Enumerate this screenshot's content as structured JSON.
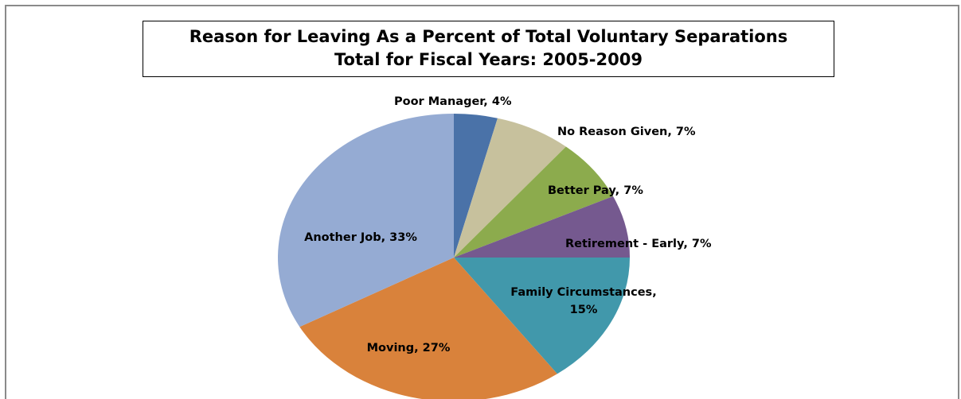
{
  "chart_data": {
    "type": "pie",
    "title": "Reason for Leaving As a Percent of Total Voluntary Separations",
    "subtitle": "Total for Fiscal Years:  2005-2009",
    "start_angle_deg": 0,
    "direction": "clockwise",
    "slices": [
      {
        "label": "Poor Manager, 4%",
        "value": 4,
        "color": "#4a72a8"
      },
      {
        "label": "No Reason Given, 7%",
        "value": 7,
        "color": "#c7c19d"
      },
      {
        "label": "Better Pay, 7%",
        "value": 7,
        "color": "#8cab4d"
      },
      {
        "label": "Retirement - Early, 7%",
        "value": 7,
        "color": "#75598f"
      },
      {
        "label": "Family Circumstances, 15%",
        "label_lines": [
          "Family Circumstances,",
          "15%"
        ],
        "value": 15,
        "color": "#4198ab"
      },
      {
        "label": "Moving, 27%",
        "value": 27,
        "color": "#d9823b"
      },
      {
        "label": "Another Job, 33%",
        "value": 33,
        "color": "#95abd3"
      }
    ]
  }
}
